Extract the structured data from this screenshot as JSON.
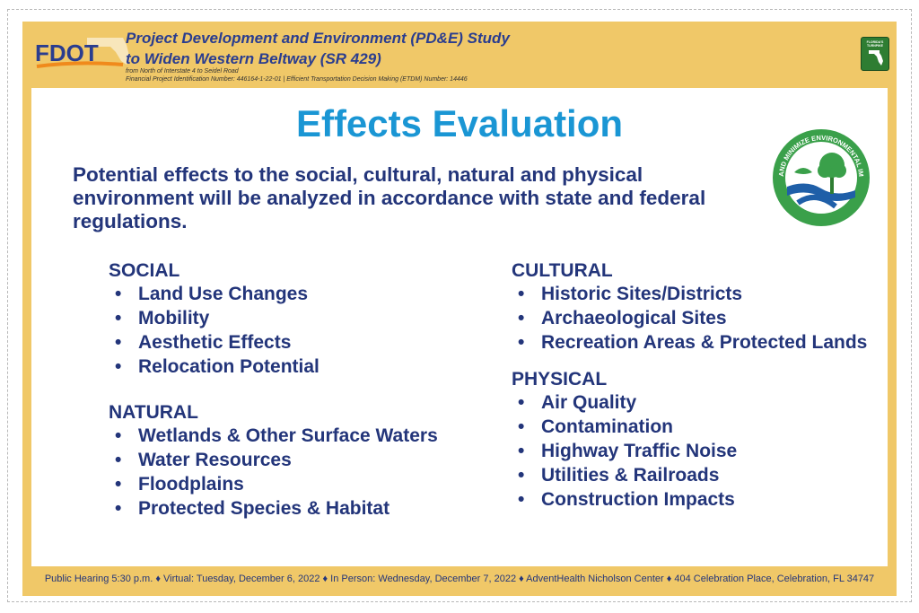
{
  "header": {
    "logo_text": "FDOT",
    "title_line1": "Project Development and Environment (PD&E) Study",
    "title_line2": "to Widen Western Beltway (SR 429)",
    "subtitle_line1": "from North of Interstate 4 to Seidel Road",
    "subtitle_line2": "Financial Project Identification Number: 446164-1-22-01 |  Efficient Transportation Decision Making (ETDM) Number: 14446",
    "turnpike_badge": "FLORIDA'S TURNPIKE"
  },
  "main": {
    "title": "Effects Evaluation",
    "intro": "Potential effects to the social, cultural, natural and physical environment will be analyzed in accordance with state and federal regulations.",
    "badge_text": "AVOID AND MINIMIZE ENVIRONMENTAL IMPACTS"
  },
  "categories": {
    "social": {
      "heading": "SOCIAL",
      "items": [
        "Land Use Changes",
        "Mobility",
        "Aesthetic Effects",
        "Relocation Potential"
      ]
    },
    "natural": {
      "heading": "NATURAL",
      "items": [
        "Wetlands & Other Surface Waters",
        "Water Resources",
        "Floodplains",
        "Protected Species & Habitat"
      ]
    },
    "cultural": {
      "heading": "CULTURAL",
      "items": [
        "Historic Sites/Districts",
        "Archaeological Sites",
        "Recreation Areas & Protected Lands"
      ]
    },
    "physical": {
      "heading": "PHYSICAL",
      "items": [
        "Air Quality",
        "Contamination",
        "Highway Traffic Noise",
        "Utilities & Railroads",
        "Construction Impacts"
      ]
    }
  },
  "bullet_char": "•",
  "footer": {
    "text": "Public Hearing 5:30 p.m. ♦ Virtual: Tuesday, December 6, 2022 ♦ In Person: Wednesday, December 7, 2022 ♦  AdventHealth Nicholson Center ♦ 404 Celebration Place, Celebration, FL 34747"
  },
  "colors": {
    "board_yellow": "#f0c868",
    "title_blue": "#1a96d4",
    "text_navy": "#23357a",
    "fdot_orange": "#f08a1c",
    "eco_green": "#3aa04a"
  }
}
